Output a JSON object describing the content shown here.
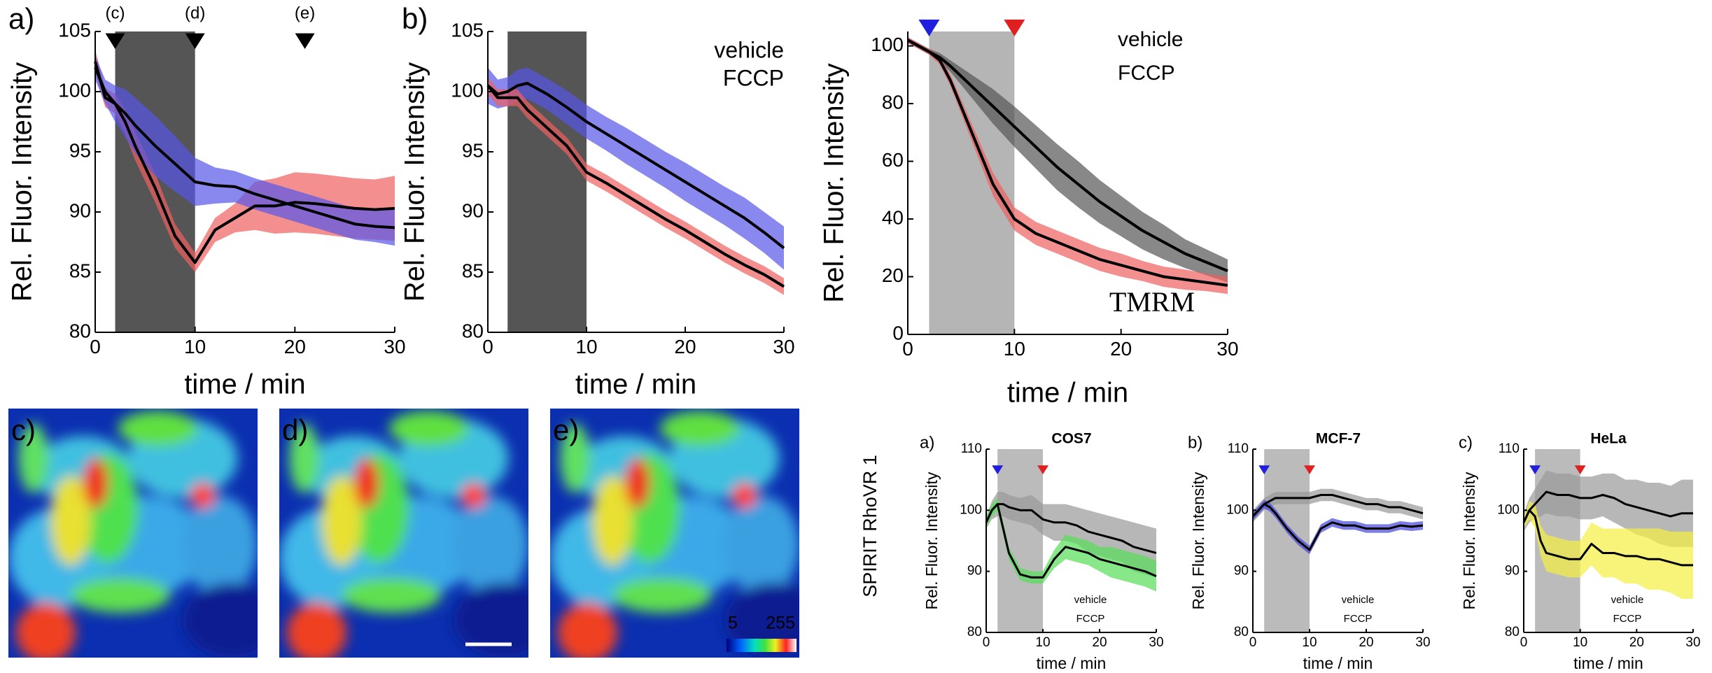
{
  "side_label": "SPIRIT RhoVR 1",
  "images": [
    {
      "label": "c)"
    },
    {
      "label": "d)"
    },
    {
      "label": "e)"
    }
  ],
  "colorbar": [
    5,
    255
  ],
  "chart_data": [
    {
      "type": "line",
      "panel_label": "a)",
      "x_label": "time / min",
      "y_label": "Rel. Fluor. Intensity",
      "xlim": [
        0,
        30
      ],
      "ylim": [
        80,
        105
      ],
      "xticks": [
        0,
        10,
        20,
        30
      ],
      "yticks": [
        80,
        85,
        90,
        95,
        100,
        105
      ],
      "stimulus": [
        2,
        10
      ],
      "stimulus_color": "#555555",
      "markers": [
        {
          "x": 2,
          "label": "(c)",
          "color": "#000000"
        },
        {
          "x": 10,
          "label": "(d)",
          "color": "#000000"
        },
        {
          "x": 21,
          "label": "(e)",
          "color": "#000000"
        }
      ],
      "x": [
        0,
        1,
        2,
        3,
        4,
        6,
        8,
        10,
        12,
        14,
        16,
        18,
        20,
        22,
        24,
        26,
        28,
        30
      ],
      "series": [
        {
          "color": "#f06060",
          "line_color": "#000000",
          "values": [
            102.5,
            99.5,
            99,
            97.5,
            95.5,
            92,
            88,
            85.8,
            88.5,
            89.5,
            90.5,
            90.5,
            90.8,
            90.7,
            90.5,
            90.3,
            90.2,
            90.3
          ],
          "error": [
            1,
            0.8,
            0.8,
            1,
            1.2,
            1.2,
            1,
            0.8,
            1,
            1.2,
            2,
            2.3,
            2.5,
            2.5,
            2.5,
            2.5,
            2.5,
            2.7
          ]
        },
        {
          "color": "#5555e8",
          "line_color": "#000000",
          "values": [
            102,
            100,
            99,
            98.2,
            97.2,
            95.5,
            94,
            92.5,
            92.2,
            92.1,
            91.5,
            91,
            90.5,
            90,
            89.5,
            89,
            88.8,
            88.7
          ],
          "error": [
            1,
            1,
            1.5,
            2,
            2.3,
            2.5,
            2.3,
            2,
            1.5,
            1.3,
            1.3,
            1.3,
            1.3,
            1.3,
            1.3,
            1.3,
            1.3,
            1.5
          ]
        }
      ]
    },
    {
      "type": "line",
      "panel_label": "b)",
      "x_label": "time / min",
      "y_label": "Rel. Fluor. Intensity",
      "xlim": [
        0,
        30
      ],
      "ylim": [
        80,
        105
      ],
      "xticks": [
        0,
        10,
        20,
        30
      ],
      "yticks": [
        80,
        85,
        90,
        95,
        100,
        105
      ],
      "stimulus": [
        2,
        10
      ],
      "stimulus_color": "#555555",
      "legend": "upper right",
      "x": [
        0,
        1,
        2,
        3,
        4,
        6,
        8,
        10,
        12,
        14,
        16,
        18,
        20,
        22,
        24,
        26,
        28,
        30
      ],
      "series": [
        {
          "name": "vehicle",
          "color": "#5555e8",
          "label_color": "#1a1ae0",
          "line_color": "#000000",
          "values": [
            100.5,
            99.8,
            100,
            100.5,
            100.7,
            99.8,
            98.7,
            97.5,
            96.5,
            95.5,
            94.5,
            93.5,
            92.5,
            91.5,
            90.5,
            89.5,
            88.3,
            87
          ],
          "error": [
            1.5,
            1.2,
            1.2,
            1.3,
            1.3,
            1.3,
            1.4,
            1.4,
            1.4,
            1.5,
            1.5,
            1.5,
            1.6,
            1.6,
            1.6,
            1.7,
            1.7,
            1.8
          ]
        },
        {
          "name": "FCCP",
          "color": "#f06060",
          "label_color": "#e01a1a",
          "line_color": "#000000",
          "values": [
            100.5,
            99.5,
            99.5,
            99.5,
            98.5,
            97,
            95.5,
            93.3,
            92.4,
            91.4,
            90.4,
            89.4,
            88.5,
            87.5,
            86.5,
            85.6,
            84.8,
            83.8
          ],
          "error": [
            0.7,
            0.7,
            0.7,
            0.7,
            0.7,
            0.7,
            0.7,
            0.7,
            0.7,
            0.7,
            0.7,
            0.7,
            0.7,
            0.7,
            0.7,
            0.7,
            0.7,
            0.7
          ]
        }
      ]
    },
    {
      "type": "line",
      "annotation": "TMRM",
      "x_label": "time / min",
      "y_label": "Rel. Fluor. Intensity",
      "xlim": [
        0,
        30
      ],
      "ylim": [
        0,
        105
      ],
      "xticks": [
        0,
        10,
        20,
        30
      ],
      "yticks": [
        0,
        20,
        40,
        60,
        80,
        100
      ],
      "stimulus": [
        2,
        10
      ],
      "stimulus_color": "#b5b5b5",
      "legend": "upper right",
      "markers": [
        {
          "x": 2,
          "color": "#1f1fdd"
        },
        {
          "x": 10,
          "color": "#e02020"
        }
      ],
      "x": [
        0,
        1,
        2,
        3,
        4,
        6,
        8,
        10,
        12,
        14,
        16,
        18,
        20,
        22,
        24,
        26,
        28,
        30
      ],
      "series": [
        {
          "name": "vehicle",
          "color": "#555555",
          "label_color": "#000000",
          "line_color": "#000000",
          "values": [
            102,
            100,
            98,
            96,
            93,
            86,
            79,
            72,
            65,
            58,
            52,
            46,
            41,
            36,
            32,
            28,
            25,
            22
          ],
          "error": [
            1,
            1,
            1,
            1.5,
            2,
            4,
            6,
            7,
            7.5,
            8,
            8,
            7.5,
            7,
            6.5,
            6,
            5,
            4.5,
            4
          ]
        },
        {
          "name": "FCCP",
          "color": "#f06060",
          "label_color": "#e83030",
          "line_color": "#000000",
          "values": [
            102,
            100,
            98,
            95,
            88,
            70,
            52,
            40,
            35,
            32,
            29,
            26,
            24,
            22,
            20,
            19,
            18,
            17
          ],
          "error": [
            1,
            1,
            1,
            1.5,
            2,
            3,
            4,
            4,
            4,
            4,
            4,
            4,
            4,
            3.5,
            3.5,
            3.5,
            3,
            3
          ]
        }
      ]
    },
    {
      "type": "line",
      "panel_label": "a)",
      "title": "COS7",
      "x_label": "time / min",
      "y_label": "Rel. Fluor. Intensity",
      "xlim": [
        0,
        30
      ],
      "ylim": [
        80,
        110
      ],
      "xticks": [
        0,
        10,
        20,
        30
      ],
      "yticks": [
        80,
        90,
        100,
        110
      ],
      "stimulus": [
        2,
        10
      ],
      "stimulus_color": "#bbbbbb",
      "legend": "lower right",
      "markers": [
        {
          "x": 2,
          "color": "#1f1fdd"
        },
        {
          "x": 10,
          "color": "#e02020"
        }
      ],
      "x": [
        0,
        1,
        2,
        3,
        4,
        6,
        8,
        10,
        12,
        14,
        16,
        18,
        20,
        22,
        24,
        26,
        28,
        30
      ],
      "series": [
        {
          "name": "vehicle",
          "color": "#999999",
          "label_color": "#000000",
          "line_color": "#000000",
          "values": [
            98,
            100,
            101,
            101,
            100.5,
            100,
            100,
            98.5,
            98,
            98,
            97.5,
            96.5,
            96,
            95.5,
            95,
            94,
            93.5,
            93
          ],
          "error": [
            1,
            1.5,
            2,
            2,
            2,
            2,
            2.5,
            2.5,
            3,
            3,
            3,
            3.5,
            3.5,
            3.5,
            3.5,
            4,
            4,
            4
          ]
        },
        {
          "name": "FCCP",
          "color": "#55dd55",
          "label_color": "#22cc22",
          "line_color": "#000000",
          "values": [
            98,
            100,
            101,
            97,
            93,
            89.5,
            89,
            89,
            92,
            94,
            93.5,
            93,
            92,
            91.5,
            91,
            90.5,
            90,
            89.2
          ],
          "error": [
            1,
            1,
            1,
            1,
            1,
            1,
            1,
            1,
            1.5,
            2,
            2,
            2,
            2,
            2.5,
            2.5,
            2.5,
            2.5,
            2.5
          ]
        }
      ]
    },
    {
      "type": "line",
      "panel_label": "b)",
      "title": "MCF-7",
      "x_label": "time / min",
      "y_label": "Rel. Fluor. Intensity",
      "xlim": [
        0,
        30
      ],
      "ylim": [
        80,
        110
      ],
      "xticks": [
        0,
        10,
        20,
        30
      ],
      "yticks": [
        80,
        90,
        100,
        110
      ],
      "stimulus": [
        2,
        10
      ],
      "stimulus_color": "#bbbbbb",
      "legend": "lower right",
      "markers": [
        {
          "x": 2,
          "color": "#1f1fdd"
        },
        {
          "x": 10,
          "color": "#e02020"
        }
      ],
      "x": [
        0,
        1,
        2,
        3,
        4,
        6,
        8,
        10,
        12,
        14,
        16,
        18,
        20,
        22,
        24,
        26,
        28,
        30
      ],
      "series": [
        {
          "name": "vehicle",
          "color": "#999999",
          "label_color": "#000000",
          "line_color": "#000000",
          "values": [
            99,
            100,
            101,
            101.5,
            102,
            102,
            102,
            102,
            102.5,
            102.5,
            102,
            101.5,
            101,
            101,
            100.5,
            100.5,
            100,
            99.5
          ],
          "error": [
            1,
            1,
            1,
            1,
            1,
            1,
            1,
            1,
            1,
            1,
            1,
            1,
            1,
            1,
            1,
            1,
            1,
            1
          ]
        },
        {
          "name": "FCCP",
          "color": "#4444dd",
          "label_color": "#2222cc",
          "line_color": "#000000",
          "values": [
            99,
            100,
            101,
            100.5,
            99.5,
            97,
            95,
            93.5,
            97,
            98,
            97.5,
            97.5,
            97,
            97,
            97,
            97.5,
            97.3,
            97.5
          ],
          "error": [
            0.7,
            0.7,
            0.7,
            0.7,
            0.7,
            0.7,
            0.7,
            0.7,
            0.7,
            0.7,
            0.7,
            0.7,
            0.7,
            0.7,
            0.7,
            0.7,
            0.7,
            0.7
          ]
        }
      ]
    },
    {
      "type": "line",
      "panel_label": "c)",
      "title": "HeLa",
      "x_label": "time / min",
      "y_label": "Rel. Fluor. Intensity",
      "xlim": [
        0,
        30
      ],
      "ylim": [
        80,
        110
      ],
      "xticks": [
        0,
        10,
        20,
        30
      ],
      "yticks": [
        80,
        90,
        100,
        110
      ],
      "stimulus": [
        2,
        10
      ],
      "stimulus_color": "#bbbbbb",
      "legend": "lower right",
      "markers": [
        {
          "x": 2,
          "color": "#1f1fdd"
        },
        {
          "x": 10,
          "color": "#e02020"
        }
      ],
      "x": [
        0,
        1,
        2,
        3,
        4,
        6,
        8,
        10,
        12,
        14,
        16,
        18,
        20,
        22,
        24,
        26,
        28,
        30
      ],
      "series": [
        {
          "name": "vehicle",
          "color": "#999999",
          "label_color": "#000000",
          "line_color": "#000000",
          "values": [
            98,
            100,
            101,
            102,
            103,
            102.5,
            102.5,
            102,
            102,
            102.5,
            102,
            101,
            100.5,
            100,
            99.5,
            99,
            99.5,
            99.5
          ],
          "error": [
            1.5,
            2,
            2.5,
            3,
            3.5,
            3.5,
            3.5,
            3.5,
            3.5,
            3.5,
            4,
            4,
            4.5,
            4.5,
            5,
            5,
            5.5,
            5.5
          ]
        },
        {
          "name": "FCCP",
          "color": "#f5f040",
          "label_color": "#e8e020",
          "line_color": "#000000",
          "values": [
            98,
            100,
            99,
            95,
            93,
            92.5,
            92,
            92,
            94.5,
            93,
            93,
            92.5,
            92.5,
            92,
            92,
            91.5,
            91,
            91
          ],
          "error": [
            1,
            1.5,
            2,
            2.5,
            3,
            3,
            3,
            3,
            3.5,
            4,
            4,
            4.5,
            4.5,
            5,
            5,
            5,
            5.5,
            5.5
          ]
        }
      ]
    }
  ]
}
